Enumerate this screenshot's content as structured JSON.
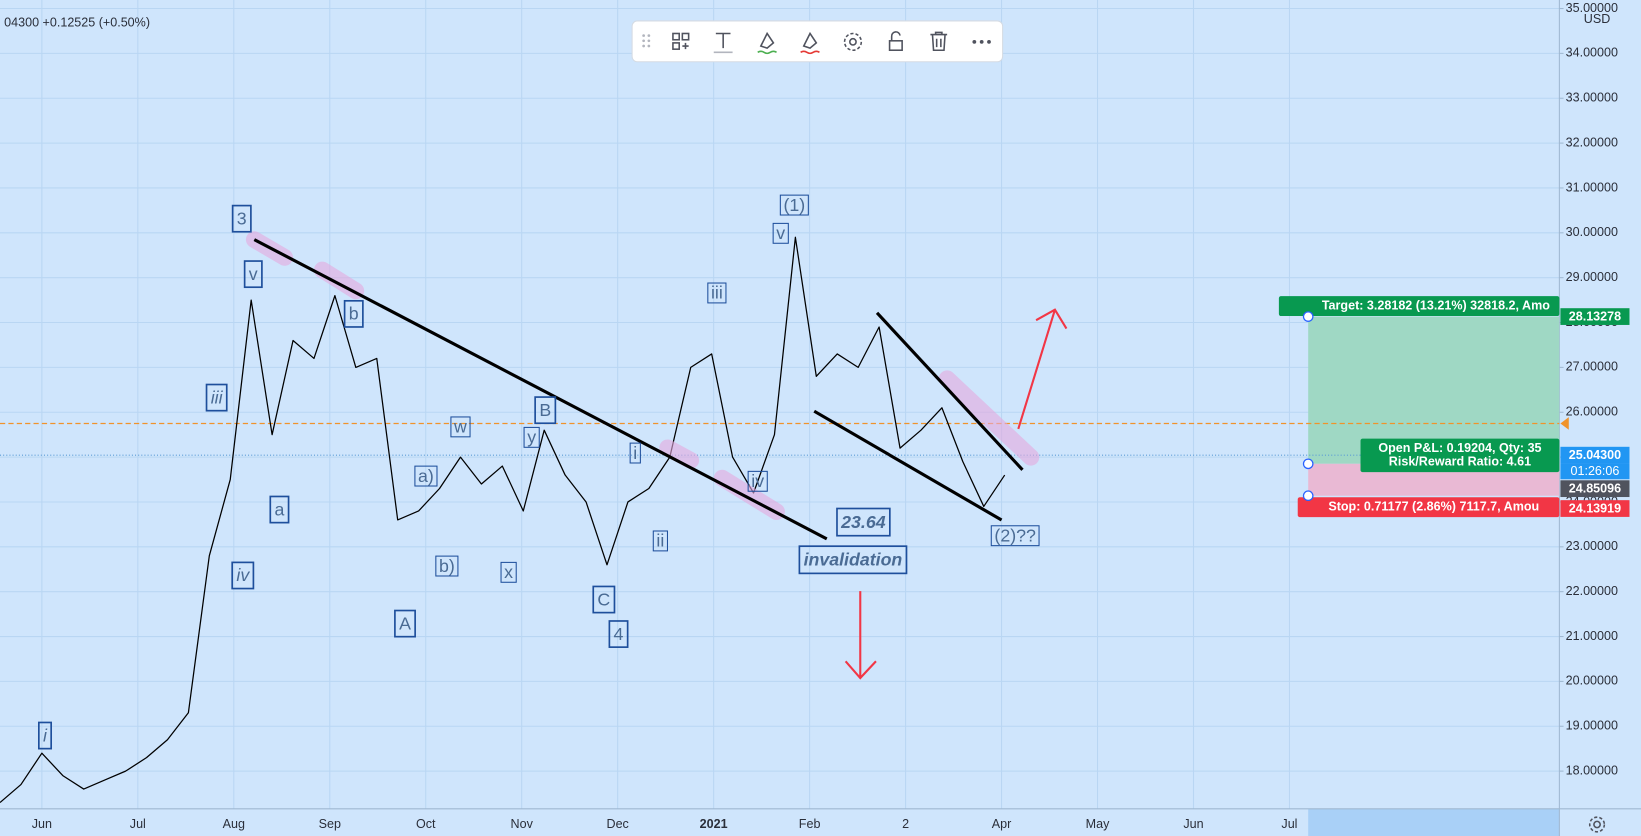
{
  "header": {
    "quote": "04300 +0.12525 (+0.50%)"
  },
  "chart_data": {
    "type": "line",
    "color": "#000000",
    "values": [
      17.3,
      17.7,
      18.4,
      17.9,
      17.6,
      17.8,
      18.0,
      18.3,
      18.7,
      19.3,
      22.8,
      24.5,
      28.5,
      25.5,
      27.6,
      27.2,
      28.6,
      27.0,
      27.2,
      23.6,
      23.8,
      24.3,
      25.0,
      24.4,
      24.8,
      23.8,
      25.6,
      24.6,
      24.0,
      22.6,
      24.0,
      24.3,
      25.0,
      27.0,
      27.3,
      25.0,
      24.2,
      25.5,
      29.9,
      26.8,
      27.3,
      27.0,
      27.9,
      25.2,
      25.6,
      26.1,
      24.9,
      23.9,
      24.6
    ],
    "xtick_labels": [
      "Jun",
      "Jul",
      "Aug",
      "Sep",
      "Oct",
      "Nov",
      "Dec",
      "2021",
      "Feb",
      "2",
      "Apr",
      "May",
      "Jun",
      "Jul"
    ],
    "ylim": [
      17.16,
      35.19
    ],
    "yticks": [
      {
        "value": 18,
        "label": "18.00000"
      },
      {
        "value": 19,
        "label": "19.00000"
      },
      {
        "value": 20,
        "label": "20.00000"
      },
      {
        "value": 21,
        "label": "21.00000"
      },
      {
        "value": 22,
        "label": "22.00000"
      },
      {
        "value": 23,
        "label": "23.00000"
      },
      {
        "value": 24,
        "label": "24.00000"
      },
      {
        "value": 25,
        "label": "25.00000"
      },
      {
        "value": 26,
        "label": "26.00000"
      },
      {
        "value": 27,
        "label": "27.00000"
      },
      {
        "value": 28,
        "label": "28.00000"
      },
      {
        "value": 29,
        "label": "29.00000"
      },
      {
        "value": 30,
        "label": "30.00000"
      },
      {
        "value": 31,
        "label": "31.00000"
      },
      {
        "value": 32,
        "label": "32.00000"
      },
      {
        "value": 33,
        "label": "33.00000"
      },
      {
        "value": 34,
        "label": "34.00000"
      },
      {
        "value": 35,
        "label": "35.00000"
      }
    ],
    "currency": "USD",
    "grid": true,
    "alert_level": 25.75,
    "last_price": {
      "value": 25.043,
      "label": "25.04300",
      "timer": "01:26:06"
    },
    "position": {
      "target": {
        "value": 28.13278,
        "label": "28.13278",
        "text": "Target: 3.28182 (13.21%) 32818.2, Amo"
      },
      "entry": {
        "value": 24.85096,
        "label": "24.85096",
        "text": [
          "Open P&L: 0.19204, Qty: 35",
          "Risk/Reward Ratio: 4.61"
        ]
      },
      "stop": {
        "value": 24.13919,
        "label": "24.13919",
        "text": "Stop: 0.71177 (2.86%) 7117.7, Amou"
      }
    },
    "wave_labels": [
      "i",
      "iii",
      "iv",
      "3",
      "v",
      "a",
      "b",
      "A",
      "w",
      "a)",
      "b)",
      "x",
      "y",
      "B",
      "C",
      "4",
      "i",
      "ii",
      "iii",
      "iv",
      "v",
      "(1)",
      "23.64",
      "invalidation",
      "(2)??"
    ]
  }
}
